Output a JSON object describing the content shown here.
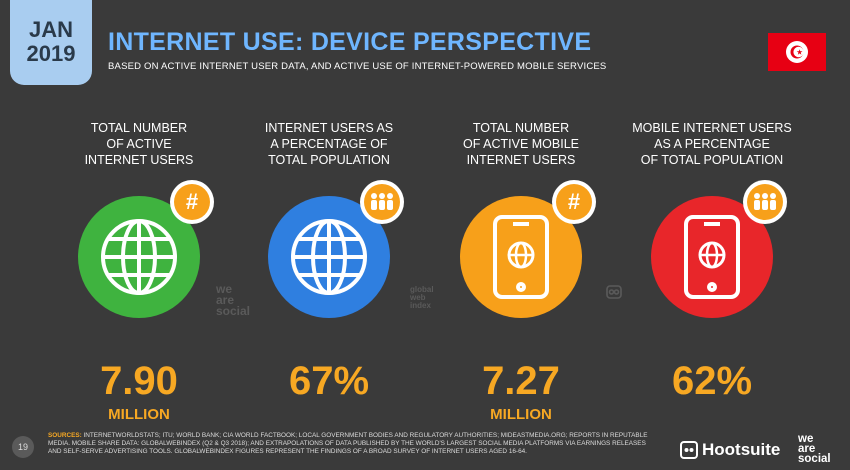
{
  "header": {
    "month": "JAN",
    "year": "2019",
    "title": "INTERNET USE: DEVICE PERSPECTIVE",
    "subtitle": "BASED ON ACTIVE INTERNET USER DATA, AND ACTIVE USE OF INTERNET-POWERED MOBILE SERVICES"
  },
  "cards": [
    {
      "label": "TOTAL NUMBER\nOF ACTIVE\nINTERNET USERS",
      "value": "7.90",
      "unit": "MILLION",
      "color": "#3fb33f",
      "icon": "globe-icon",
      "badge": "hash-icon"
    },
    {
      "label": "INTERNET USERS AS\nA PERCENTAGE OF\nTOTAL POPULATION",
      "value": "67%",
      "unit": "",
      "color": "#2f7fe0",
      "icon": "globe-icon",
      "badge": "people-icon"
    },
    {
      "label": "TOTAL NUMBER\nOF ACTIVE MOBILE\nINTERNET USERS",
      "value": "7.27",
      "unit": "MILLION",
      "color": "#f7a01a",
      "icon": "mobile-globe-icon",
      "badge": "hash-icon"
    },
    {
      "label": "MOBILE INTERNET USERS\nAS A PERCENTAGE\nOF TOTAL POPULATION",
      "value": "62%",
      "unit": "",
      "color": "#e8262a",
      "icon": "mobile-globe-icon",
      "badge": "people-icon"
    }
  ],
  "watermarks": {
    "social": "we\nare\nsocial",
    "gwi": "global\nweb\nindex"
  },
  "footer": {
    "page": "19",
    "sources_label": "SOURCES:",
    "sources_text": "INTERNETWORLDSTATS; ITU; WORLD BANK; CIA WORLD FACTBOOK; LOCAL GOVERNMENT BODIES AND REGULATORY AUTHORITIES; MIDEASTMEDIA.ORG; REPORTS IN REPUTABLE MEDIA. MOBILE SHARE DATA: GLOBALWEBINDEX (Q2 & Q3 2018); AND EXTRAPOLATIONS OF DATA PUBLISHED BY THE WORLD'S LARGEST SOCIAL MEDIA PLATFORMS VIA EARNINGS RELEASES AND SELF-SERVE ADVERTISING TOOLS. GLOBALWEBINDEX FIGURES REPRESENT THE FINDINGS OF A BROAD SURVEY OF INTERNET USERS AGED 16-64.",
    "hootsuite": "Hootsuite",
    "wearesocial": "we\nare\nsocial"
  },
  "colors": {
    "accent": "#f7a823",
    "title": "#6fb6ff",
    "background": "#3a3a3a",
    "flag": "#e70013"
  }
}
